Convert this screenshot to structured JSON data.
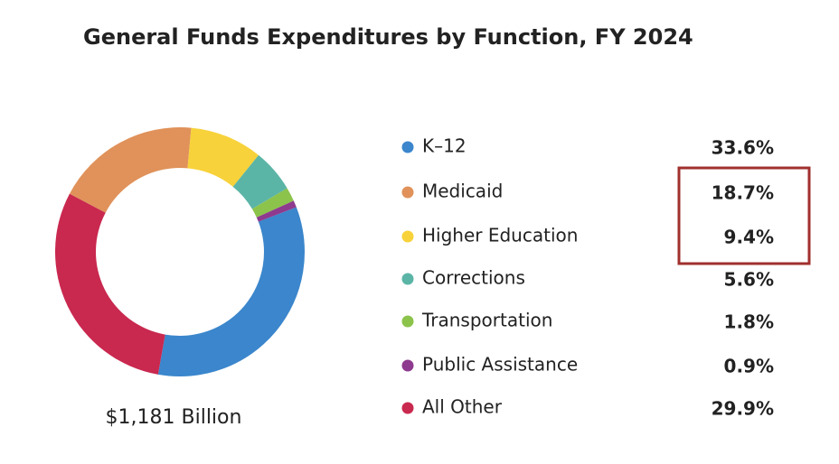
{
  "chart_data": {
    "type": "donut",
    "title": "General Funds Expenditures by Function, FY 2024",
    "total_label": "$1,181 Billion",
    "categories": [
      "K–12",
      "Medicaid",
      "Higher Education",
      "Corrections",
      "Transportation",
      "Public Assistance",
      "All Other"
    ],
    "values": [
      33.6,
      18.7,
      9.4,
      5.6,
      1.8,
      0.9,
      29.9
    ],
    "value_labels": [
      "33.6%",
      "18.7%",
      "9.4%",
      "5.6%",
      "1.8%",
      "0.9%",
      "29.9%"
    ],
    "colors": [
      "#3b86cc",
      "#e0925a",
      "#f7d23a",
      "#5bb5a6",
      "#8cc34b",
      "#8e3a8e",
      "#c9284f"
    ]
  }
}
